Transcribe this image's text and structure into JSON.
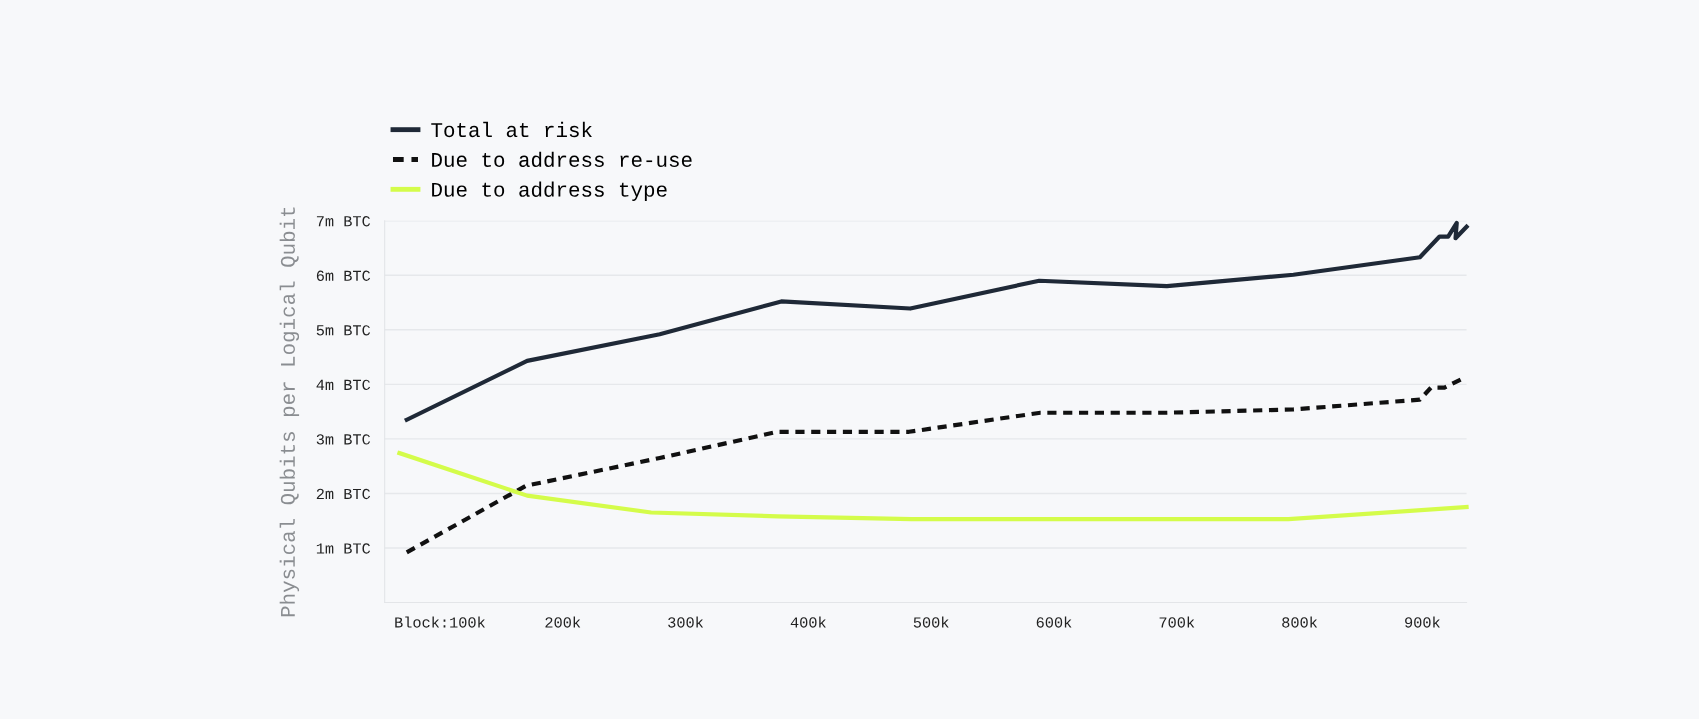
{
  "chart_data": {
    "type": "line",
    "ylabel": "Physical Qubits per Logical Qubit",
    "xlim": [
      55,
      936
    ],
    "xticks": [
      {
        "value": 100,
        "label": "Block:100k"
      },
      {
        "value": 200,
        "label": "200k"
      },
      {
        "value": 300,
        "label": "300k"
      },
      {
        "value": 400,
        "label": "400k"
      },
      {
        "value": 500,
        "label": "500k"
      },
      {
        "value": 600,
        "label": "600k"
      },
      {
        "value": 700,
        "label": "700k"
      },
      {
        "value": 800,
        "label": "800k"
      },
      {
        "value": 900,
        "label": "900k"
      }
    ],
    "ylim": [
      0,
      7
    ],
    "yticks": [
      {
        "value": 1,
        "label": "1m BTC"
      },
      {
        "value": 2,
        "label": "2m BTC"
      },
      {
        "value": 3,
        "label": "3m BTC"
      },
      {
        "value": 4,
        "label": "4m BTC"
      },
      {
        "value": 5,
        "label": "5m BTC"
      },
      {
        "value": 6,
        "label": "6m BTC"
      },
      {
        "value": 7,
        "label": "7m BTC"
      }
    ],
    "grid": "y",
    "legend": "top left",
    "marker": "none",
    "series": [
      {
        "name": "Total at risk",
        "color": "#1f2937",
        "line_style": "solid",
        "x": [
          73,
          171,
          279,
          378,
          483,
          588,
          692,
          795,
          898,
          914,
          921,
          928,
          927,
          936
        ],
        "values": [
          3.35,
          4.43,
          4.92,
          5.52,
          5.39,
          5.9,
          5.8,
          6.01,
          6.33,
          6.71,
          6.71,
          6.96,
          6.68,
          6.89
        ]
      },
      {
        "name": "Due to address re-use",
        "color": "#111111",
        "line_style": "dashed",
        "x": [
          73,
          170,
          279,
          375,
          482,
          589,
          692,
          795,
          898,
          907,
          918,
          936
        ],
        "values": [
          0.92,
          2.14,
          2.65,
          3.13,
          3.13,
          3.48,
          3.48,
          3.54,
          3.72,
          3.94,
          3.94,
          4.14
        ]
      },
      {
        "name": "Due to address type",
        "color": "#d4fc4a",
        "line_style": "solid",
        "x": [
          67,
          171,
          272,
          375,
          484,
          791,
          936
        ],
        "values": [
          2.74,
          1.96,
          1.65,
          1.58,
          1.53,
          1.53,
          1.75
        ]
      }
    ]
  }
}
